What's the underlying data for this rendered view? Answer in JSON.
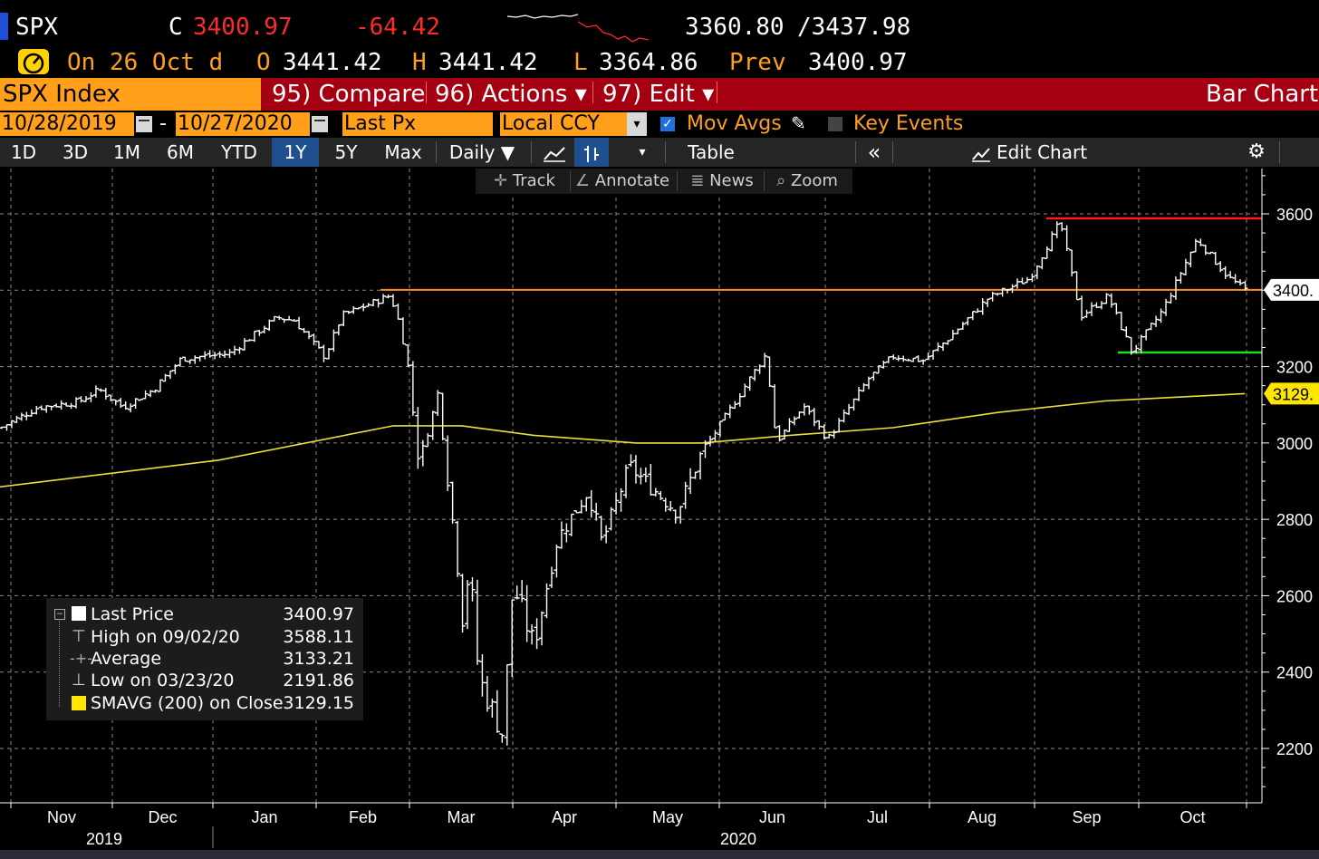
{
  "header": {
    "ticker": "SPX",
    "close_prefix": "C",
    "last": "3400.97",
    "change": "-64.42",
    "range_low": "3360.80",
    "range_high": "/3437.98",
    "day_info": "On 26 Oct d",
    "open_label": "O",
    "open": "3441.42",
    "high_label": "H",
    "high": "3441.42",
    "low_label": "L",
    "low": "3364.86",
    "prev_label": "Prev",
    "prev": "3400.97"
  },
  "toolbar": {
    "security": "SPX Index",
    "compare": "95) Compare",
    "actions": "96) Actions ▾",
    "edit": "97) Edit ▾",
    "chart_type": "Bar Chart"
  },
  "settings": {
    "start_date": "10/28/2019",
    "dash": "-",
    "end_date": "10/27/2020",
    "field": "Last Px",
    "currency": "Local CCY",
    "mov_avgs": "Mov Avgs",
    "key_events": "Key Events"
  },
  "periods": [
    "1D",
    "3D",
    "1M",
    "6M",
    "YTD",
    "1Y",
    "5Y",
    "Max"
  ],
  "selected_period": "1Y",
  "controls": {
    "frequency": "Daily ▼",
    "table": "Table",
    "collapse": "«",
    "edit_chart": "Edit Chart"
  },
  "chart_tools": {
    "track": "Track",
    "annotate": "Annotate",
    "news": "News",
    "zoom": "Zoom"
  },
  "legend": [
    {
      "label": "Last Price",
      "value": "3400.97"
    },
    {
      "label": "High on 09/02/20",
      "value": "3588.11"
    },
    {
      "label": "Average",
      "value": "3133.21"
    },
    {
      "label": "Low on 03/23/20",
      "value": "2191.86"
    },
    {
      "label": "SMAVG (200)  on Close",
      "value": "3129.15"
    }
  ],
  "colors": {
    "background": "#000000",
    "price_bars": "#ffffff",
    "sma": "#e8e23a",
    "last_line": "#ff8c1a",
    "high_line": "#ff1a1a",
    "low_line": "#22dd22",
    "accent_orange": "#ff9f1a",
    "toolbar_red": "#a50011"
  },
  "chart_data": {
    "type": "bar",
    "title": "SPX Index",
    "ylim": [
      2100,
      3700
    ],
    "yticks": [
      "3600",
      "3400",
      "3200",
      "3000",
      "2800",
      "2600",
      "2400",
      "2200"
    ],
    "last_price_tag": "3400.",
    "sma_tag": "3129.",
    "x_months": [
      "Nov",
      "Dec",
      "Jan",
      "Feb",
      "Mar",
      "Apr",
      "May",
      "Jun",
      "Jul",
      "Aug",
      "Sep",
      "Oct"
    ],
    "x_years": [
      "2019",
      "2020"
    ],
    "reference_lines": {
      "last": 3400.97,
      "high": 3588.11,
      "low_recent": 3236.92
    },
    "series": [
      {
        "name": "SPX",
        "anchors": [
          [
            "2019-10-28",
            3039
          ],
          [
            "2019-11-08",
            3093
          ],
          [
            "2019-11-20",
            3108
          ],
          [
            "2019-11-26",
            3140
          ],
          [
            "2019-12-03",
            3093
          ],
          [
            "2019-12-12",
            3141
          ],
          [
            "2019-12-20",
            3221
          ],
          [
            "2019-12-31",
            3231
          ],
          [
            "2020-01-03",
            3234
          ],
          [
            "2020-01-17",
            3329
          ],
          [
            "2020-01-22",
            3321
          ],
          [
            "2020-01-31",
            3225
          ],
          [
            "2020-02-05",
            3334
          ],
          [
            "2020-02-19",
            3386
          ],
          [
            "2020-02-21",
            3338
          ],
          [
            "2020-02-24",
            3225
          ],
          [
            "2020-02-27",
            2979
          ],
          [
            "2020-02-28",
            2954
          ],
          [
            "2020-03-04",
            3130
          ],
          [
            "2020-03-09",
            2746
          ],
          [
            "2020-03-12",
            2480
          ],
          [
            "2020-03-13",
            2711
          ],
          [
            "2020-03-16",
            2386
          ],
          [
            "2020-03-23",
            2237
          ],
          [
            "2020-03-26",
            2630
          ],
          [
            "2020-04-01",
            2470
          ],
          [
            "2020-04-08",
            2749
          ],
          [
            "2020-04-17",
            2875
          ],
          [
            "2020-04-21",
            2737
          ],
          [
            "2020-04-29",
            2939
          ],
          [
            "2020-05-13",
            2820
          ],
          [
            "2020-05-20",
            2971
          ],
          [
            "2020-06-05",
            3193
          ],
          [
            "2020-06-08",
            3232
          ],
          [
            "2020-06-11",
            3002
          ],
          [
            "2020-06-19",
            3097
          ],
          [
            "2020-06-26",
            3009
          ],
          [
            "2020-07-08",
            3169
          ],
          [
            "2020-07-15",
            3227
          ],
          [
            "2020-07-24",
            3216
          ],
          [
            "2020-07-31",
            3271
          ],
          [
            "2020-08-12",
            3380
          ],
          [
            "2020-08-24",
            3431
          ],
          [
            "2020-09-02",
            3580
          ],
          [
            "2020-09-08",
            3332
          ],
          [
            "2020-09-16",
            3385
          ],
          [
            "2020-09-23",
            3237
          ],
          [
            "2020-10-02",
            3348
          ],
          [
            "2020-10-12",
            3534
          ],
          [
            "2020-10-21",
            3435
          ],
          [
            "2020-10-26",
            3400.97
          ]
        ]
      },
      {
        "name": "SMAVG (200)",
        "anchors": [
          [
            "2019-10-28",
            2885
          ],
          [
            "2019-12-31",
            2955
          ],
          [
            "2020-02-20",
            3045
          ],
          [
            "2020-03-11",
            3045
          ],
          [
            "2020-04-01",
            3020
          ],
          [
            "2020-05-01",
            3000
          ],
          [
            "2020-05-20",
            3000
          ],
          [
            "2020-06-15",
            3020
          ],
          [
            "2020-07-15",
            3040
          ],
          [
            "2020-08-15",
            3080
          ],
          [
            "2020-09-15",
            3110
          ],
          [
            "2020-10-26",
            3129.15
          ]
        ]
      }
    ]
  }
}
